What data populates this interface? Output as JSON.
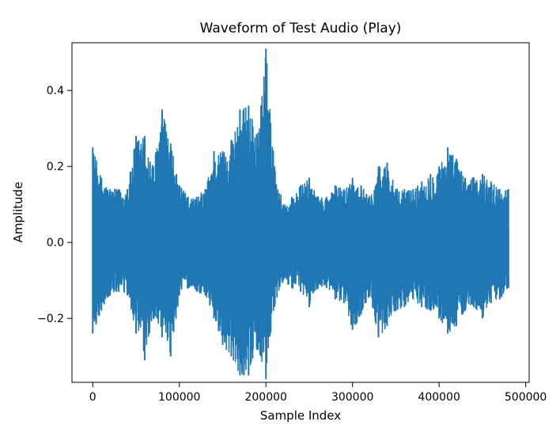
{
  "chart_data": {
    "type": "line",
    "title": "Waveform of Test Audio (Play)",
    "xlabel": "Sample Index",
    "ylabel": "Amplitude",
    "xlim": [
      -24000,
      504000
    ],
    "ylim": [
      -0.3683,
      0.5255
    ],
    "xticks": [
      0,
      100000,
      200000,
      300000,
      400000,
      500000
    ],
    "xtick_labels": [
      "0",
      "100000",
      "200000",
      "300000",
      "400000",
      "500000"
    ],
    "yticks": [
      -0.2,
      0.0,
      0.2,
      0.4
    ],
    "ytick_labels": [
      "−0.2",
      "0.0",
      "0.2",
      "0.4"
    ],
    "grid": false,
    "legend": false,
    "series": [
      {
        "color": "#1f77b4",
        "n_samples": 480000,
        "envelope_step": 10000,
        "envelope_x": [
          0,
          10000,
          20000,
          30000,
          40000,
          50000,
          60000,
          70000,
          80000,
          90000,
          100000,
          110000,
          120000,
          130000,
          140000,
          150000,
          160000,
          170000,
          180000,
          190000,
          200000,
          210000,
          220000,
          230000,
          240000,
          250000,
          260000,
          270000,
          280000,
          290000,
          300000,
          310000,
          320000,
          330000,
          340000,
          350000,
          360000,
          370000,
          380000,
          390000,
          400000,
          410000,
          420000,
          430000,
          440000,
          450000,
          460000,
          470000,
          480000
        ],
        "max_envelope": [
          0.25,
          0.17,
          0.14,
          0.14,
          0.14,
          0.28,
          0.28,
          0.2,
          0.35,
          0.26,
          0.15,
          0.12,
          0.12,
          0.14,
          0.24,
          0.24,
          0.27,
          0.35,
          0.36,
          0.28,
          0.51,
          0.2,
          0.1,
          0.12,
          0.15,
          0.17,
          0.12,
          0.12,
          0.15,
          0.14,
          0.17,
          0.15,
          0.12,
          0.2,
          0.21,
          0.14,
          0.14,
          0.14,
          0.16,
          0.18,
          0.2,
          0.25,
          0.22,
          0.17,
          0.17,
          0.18,
          0.16,
          0.14,
          0.14
        ],
        "min_envelope": [
          -0.24,
          -0.18,
          -0.14,
          -0.13,
          -0.14,
          -0.24,
          -0.31,
          -0.2,
          -0.25,
          -0.3,
          -0.14,
          -0.12,
          -0.13,
          -0.14,
          -0.2,
          -0.27,
          -0.3,
          -0.35,
          -0.35,
          -0.28,
          -0.36,
          -0.17,
          -0.1,
          -0.12,
          -0.13,
          -0.17,
          -0.12,
          -0.12,
          -0.15,
          -0.16,
          -0.23,
          -0.19,
          -0.14,
          -0.25,
          -0.22,
          -0.18,
          -0.17,
          -0.15,
          -0.17,
          -0.18,
          -0.2,
          -0.24,
          -0.22,
          -0.18,
          -0.17,
          -0.2,
          -0.16,
          -0.15,
          -0.12
        ]
      }
    ]
  }
}
